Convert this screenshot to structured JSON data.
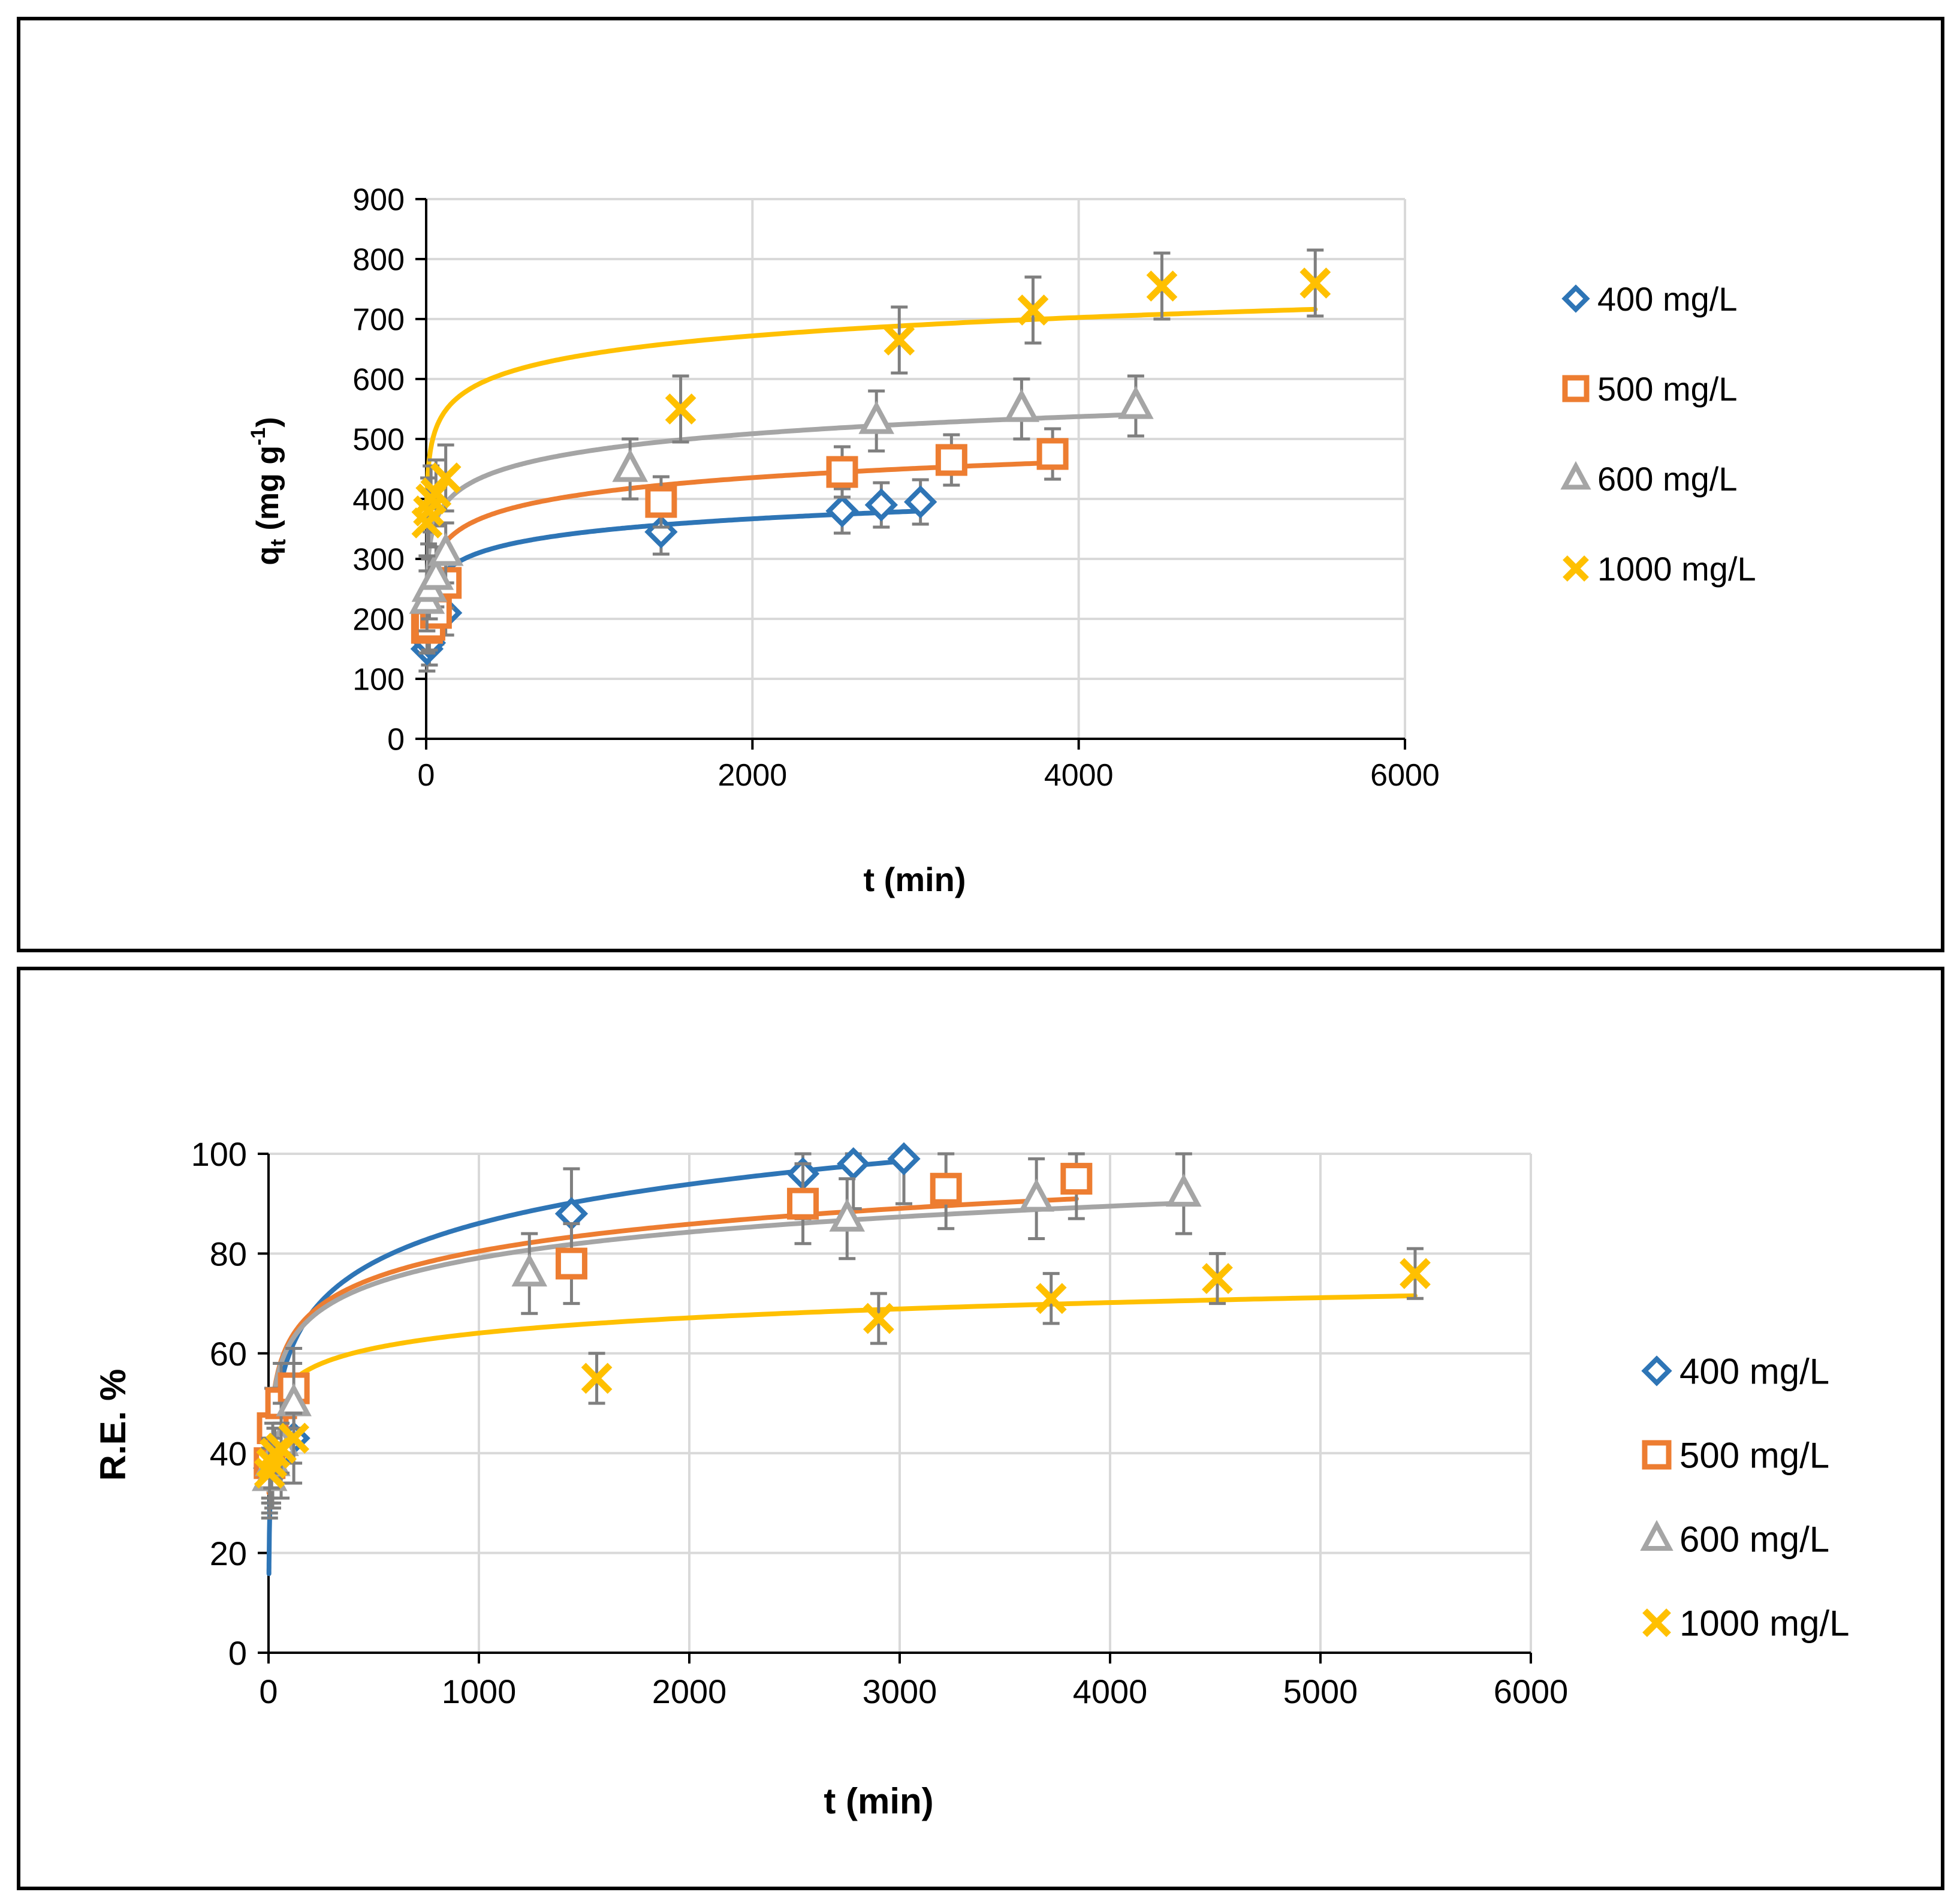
{
  "colors": {
    "c400": "#2E75B6",
    "c500": "#ED7D31",
    "c600": "#A5A5A5",
    "c1000": "#FFC000",
    "grid": "#D9D9D9",
    "axis": "#000000",
    "errbar": "#7F7F7F"
  },
  "chart_data": [
    {
      "type": "scatter",
      "title": "",
      "xlabel": "t (min)",
      "ylabel_main": "q",
      "ylabel_sub": "t",
      "ylabel_rest": " (mg g",
      "ylabel_sup": "-1",
      "ylabel_close": ")",
      "xlim": [
        0,
        6000
      ],
      "ylim": [
        0,
        900
      ],
      "xticks": [
        0,
        2000,
        4000,
        6000
      ],
      "yticks": [
        0,
        100,
        200,
        300,
        400,
        500,
        600,
        700,
        800,
        900
      ],
      "grid": true,
      "legend": "right",
      "series": [
        {
          "name": "400 mg/L",
          "marker": "diamond",
          "colorKey": "c400",
          "points": [
            [
              5,
              150
            ],
            [
              20,
              160
            ],
            [
              60,
              195
            ],
            [
              120,
              210
            ],
            [
              1440,
              345
            ],
            [
              2550,
              380
            ],
            [
              2790,
              390
            ],
            [
              3030,
              395
            ]
          ],
          "err": 37,
          "fit": {
            "a": 130.5,
            "b": 31.1,
            "xmax": 3030
          }
        },
        {
          "name": "500 mg/L",
          "marker": "square",
          "colorKey": "c500",
          "points": [
            [
              5,
              185
            ],
            [
              20,
              190
            ],
            [
              60,
              210
            ],
            [
              120,
              260
            ],
            [
              1440,
              395
            ],
            [
              2550,
              445
            ],
            [
              3220,
              465
            ],
            [
              3840,
              475
            ]
          ],
          "err": 42,
          "fit": {
            "a": 145.9,
            "b": 38.1,
            "xmax": 3840
          }
        },
        {
          "name": "600 mg/L",
          "marker": "triangle",
          "colorKey": "c600",
          "points": [
            [
              5,
              230
            ],
            [
              20,
              250
            ],
            [
              60,
              270
            ],
            [
              120,
              310
            ],
            [
              1250,
              450
            ],
            [
              2760,
              530
            ],
            [
              3650,
              550
            ],
            [
              4350,
              555
            ]
          ],
          "err": 50,
          "fit": {
            "a": 195.6,
            "b": 41.2,
            "xmax": 4350
          }
        },
        {
          "name": "1000 mg/L",
          "marker": "cross",
          "colorKey": "c1000",
          "points": [
            [
              5,
              360
            ],
            [
              15,
              380
            ],
            [
              30,
              400
            ],
            [
              60,
              410
            ],
            [
              120,
              435
            ],
            [
              1560,
              550
            ],
            [
              2900,
              665
            ],
            [
              3720,
              715
            ],
            [
              4510,
              755
            ],
            [
              5450,
              760
            ]
          ],
          "err": 55,
          "fit": {
            "a": 336.8,
            "b": 44.1,
            "xmax": 5450
          }
        }
      ]
    },
    {
      "type": "scatter",
      "title": "",
      "xlabel": "t (min)",
      "ylabel": "R.E. %",
      "xlim": [
        0,
        6000
      ],
      "ylim": [
        0,
        100
      ],
      "xticks": [
        0,
        1000,
        2000,
        3000,
        4000,
        5000,
        6000
      ],
      "yticks": [
        0,
        20,
        40,
        60,
        80,
        100
      ],
      "grid": true,
      "legend": "right",
      "series": [
        {
          "name": "400 mg/L",
          "marker": "diamond",
          "colorKey": "c400",
          "points": [
            [
              5,
              37
            ],
            [
              20,
              38
            ],
            [
              60,
              40
            ],
            [
              120,
              43
            ],
            [
              1440,
              88
            ],
            [
              2540,
              96
            ],
            [
              2780,
              98
            ],
            [
              3020,
              99
            ]
          ],
          "err": 9,
          "fit": {
            "a": 8.0,
            "b": 11.3,
            "xmax": 3020
          }
        },
        {
          "name": "500 mg/L",
          "marker": "square",
          "colorKey": "c500",
          "points": [
            [
              5,
              38
            ],
            [
              20,
              45
            ],
            [
              60,
              50
            ],
            [
              120,
              53
            ],
            [
              1440,
              78
            ],
            [
              2540,
              90
            ],
            [
              3220,
              93
            ],
            [
              3840,
              95
            ]
          ],
          "err": 8,
          "fit": {
            "a": 26.6,
            "b": 7.8,
            "xmax": 3840
          }
        },
        {
          "name": "600 mg/L",
          "marker": "triangle",
          "colorKey": "c600",
          "points": [
            [
              5,
              35
            ],
            [
              20,
              38
            ],
            [
              60,
              42
            ],
            [
              120,
              50
            ],
            [
              1240,
              76
            ],
            [
              2750,
              87
            ],
            [
              3650,
              91
            ],
            [
              4350,
              92
            ]
          ],
          "err": 8,
          "fit": {
            "a": 27.3,
            "b": 7.5,
            "xmax": 4350
          }
        },
        {
          "name": "1000 mg/L",
          "marker": "cross",
          "colorKey": "c1000",
          "points": [
            [
              5,
              36
            ],
            [
              15,
              38
            ],
            [
              30,
              40
            ],
            [
              60,
              41
            ],
            [
              120,
              43
            ],
            [
              1560,
              55
            ],
            [
              2900,
              67
            ],
            [
              3720,
              71
            ],
            [
              4510,
              75
            ],
            [
              5450,
              76
            ]
          ],
          "err": 5,
          "fit": {
            "a": 33.6,
            "b": 4.41,
            "xmax": 5450
          }
        }
      ]
    }
  ]
}
